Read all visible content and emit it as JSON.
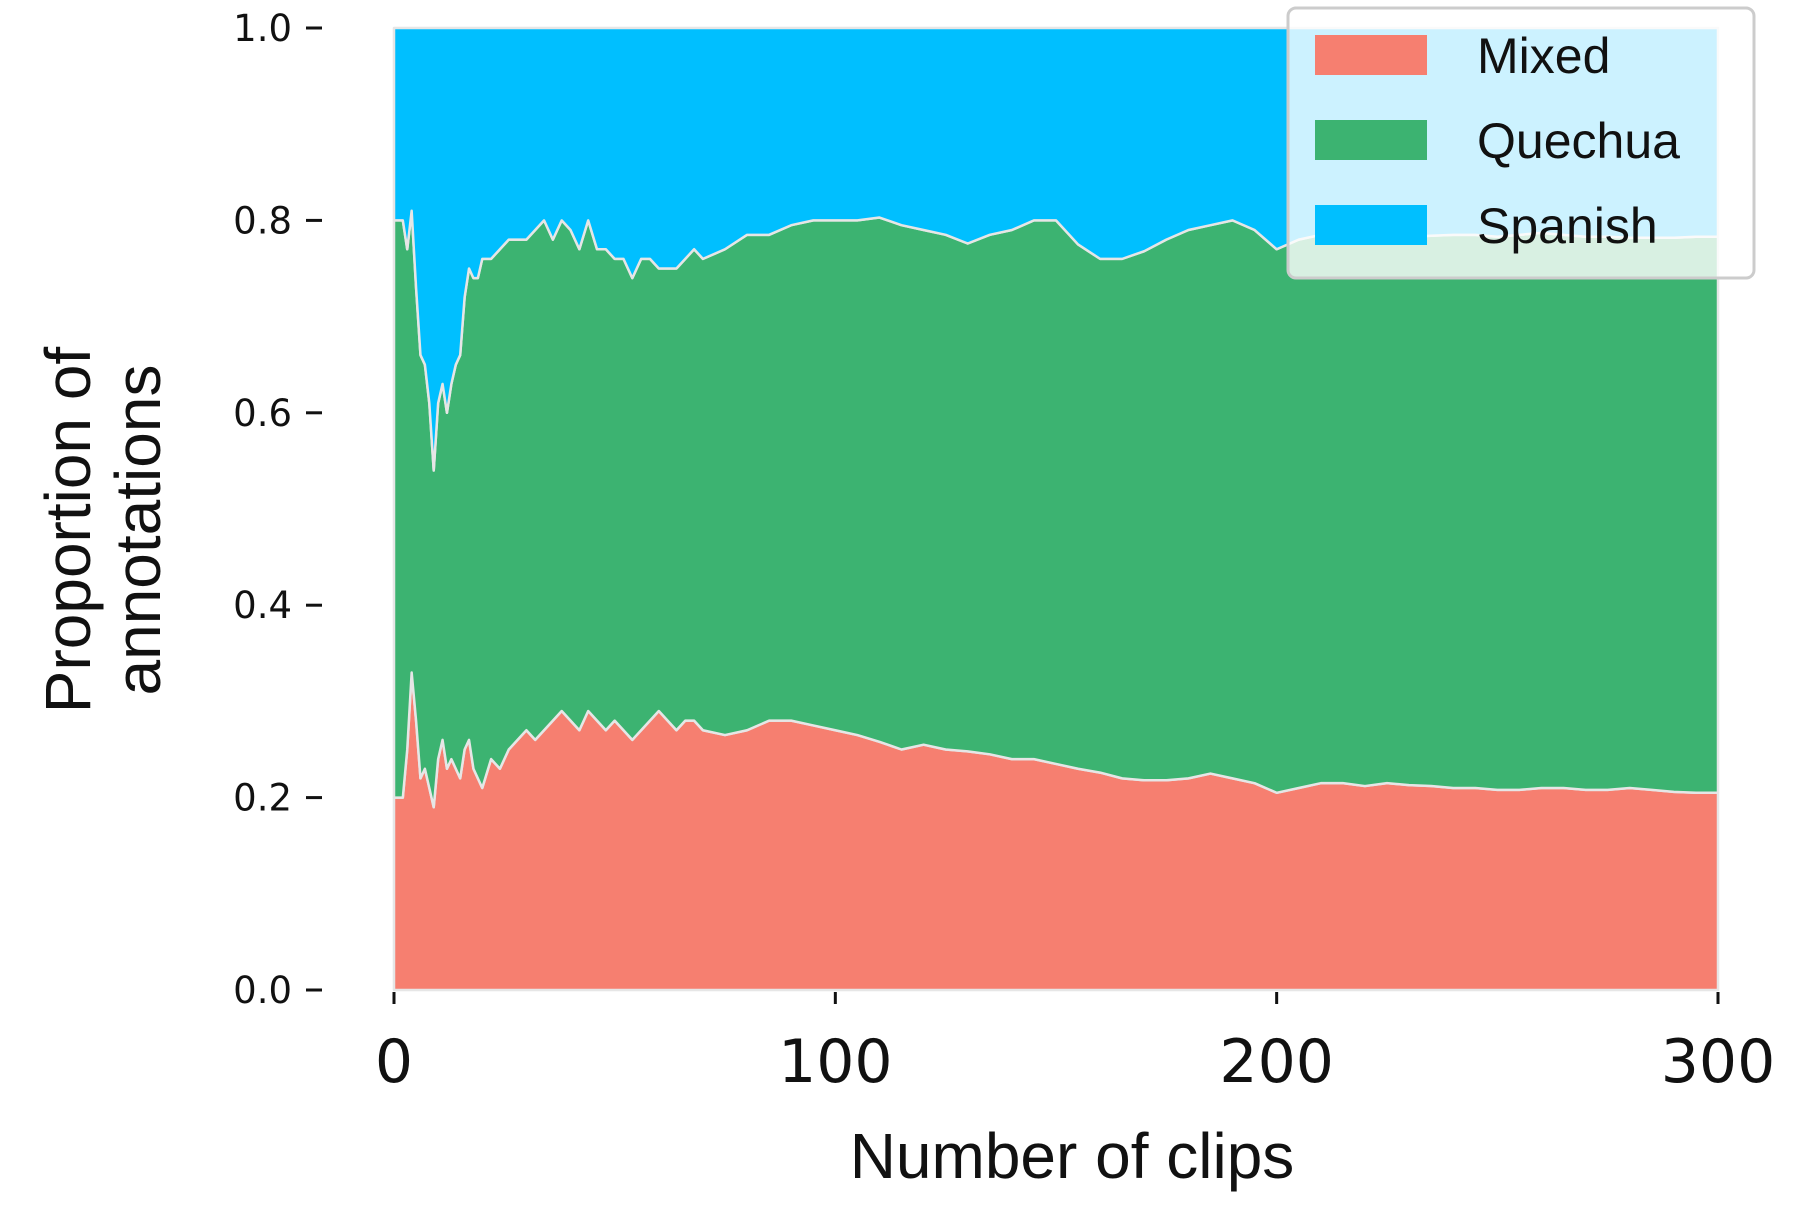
{
  "chart_data": {
    "type": "area",
    "stacked": true,
    "normalized": true,
    "xlabel": "Number of clips",
    "ylabel_lines": [
      "Proportion of",
      "annotations"
    ],
    "xlim": [
      0,
      300
    ],
    "ylim": [
      0,
      1
    ],
    "x_ticks": [
      "0",
      "100",
      "200",
      "300"
    ],
    "x_tick_values": [
      0,
      100,
      200,
      300
    ],
    "y_ticks": [
      "0.0",
      "0.2",
      "0.4",
      "0.6",
      "0.8",
      "1.0"
    ],
    "y_tick_values": [
      0,
      0.2,
      0.4,
      0.6,
      0.8,
      1.0
    ],
    "grid": false,
    "legend_position": "top-right",
    "x": [
      1,
      2,
      3,
      4,
      5,
      6,
      7,
      8,
      9,
      10,
      11,
      12,
      13,
      14,
      15,
      16,
      17,
      18,
      19,
      20,
      22,
      24,
      26,
      28,
      30,
      32,
      34,
      36,
      38,
      40,
      42,
      44,
      46,
      48,
      50,
      52,
      54,
      56,
      58,
      60,
      62,
      64,
      66,
      68,
      70,
      75,
      80,
      85,
      90,
      95,
      100,
      105,
      110,
      115,
      120,
      125,
      130,
      135,
      140,
      145,
      150,
      155,
      160,
      165,
      170,
      175,
      180,
      185,
      190,
      195,
      200,
      205,
      210,
      215,
      220,
      225,
      230,
      235,
      240,
      245,
      250,
      255,
      260,
      265,
      270,
      275,
      280,
      285,
      290,
      295,
      300
    ],
    "series": [
      {
        "name": "Mixed",
        "color": "#f67f70",
        "values": [
          0.2,
          0.2,
          0.25,
          0.33,
          0.28,
          0.22,
          0.23,
          0.21,
          0.19,
          0.24,
          0.26,
          0.23,
          0.24,
          0.23,
          0.22,
          0.25,
          0.26,
          0.23,
          0.22,
          0.21,
          0.24,
          0.23,
          0.25,
          0.26,
          0.27,
          0.26,
          0.27,
          0.28,
          0.29,
          0.28,
          0.27,
          0.29,
          0.28,
          0.27,
          0.28,
          0.27,
          0.26,
          0.27,
          0.28,
          0.29,
          0.28,
          0.27,
          0.28,
          0.28,
          0.27,
          0.265,
          0.27,
          0.28,
          0.28,
          0.275,
          0.27,
          0.265,
          0.258,
          0.25,
          0.255,
          0.25,
          0.248,
          0.245,
          0.24,
          0.24,
          0.235,
          0.23,
          0.226,
          0.22,
          0.218,
          0.218,
          0.22,
          0.225,
          0.22,
          0.215,
          0.205,
          0.21,
          0.215,
          0.215,
          0.212,
          0.215,
          0.213,
          0.212,
          0.21,
          0.21,
          0.208,
          0.208,
          0.21,
          0.21,
          0.208,
          0.208,
          0.21,
          0.208,
          0.206,
          0.205,
          0.205
        ]
      },
      {
        "name": "Quechua",
        "color": "#3cb371",
        "values": [
          0.6,
          0.6,
          0.52,
          0.48,
          0.45,
          0.44,
          0.42,
          0.4,
          0.35,
          0.37,
          0.37,
          0.37,
          0.39,
          0.42,
          0.44,
          0.47,
          0.49,
          0.51,
          0.52,
          0.55,
          0.52,
          0.54,
          0.53,
          0.52,
          0.51,
          0.53,
          0.53,
          0.5,
          0.51,
          0.51,
          0.5,
          0.51,
          0.49,
          0.5,
          0.48,
          0.49,
          0.48,
          0.49,
          0.48,
          0.46,
          0.47,
          0.48,
          0.48,
          0.49,
          0.49,
          0.505,
          0.515,
          0.505,
          0.515,
          0.525,
          0.53,
          0.535,
          0.545,
          0.545,
          0.535,
          0.535,
          0.528,
          0.54,
          0.55,
          0.56,
          0.565,
          0.545,
          0.534,
          0.54,
          0.55,
          0.562,
          0.57,
          0.57,
          0.58,
          0.575,
          0.565,
          0.57,
          0.57,
          0.57,
          0.57,
          0.57,
          0.57,
          0.572,
          0.575,
          0.575,
          0.575,
          0.577,
          0.577,
          0.575,
          0.575,
          0.575,
          0.572,
          0.574,
          0.576,
          0.578,
          0.578
        ]
      },
      {
        "name": "Spanish",
        "color": "#00bfff",
        "values": [
          0.2,
          0.2,
          0.23,
          0.19,
          0.27,
          0.34,
          0.35,
          0.39,
          0.46,
          0.39,
          0.37,
          0.4,
          0.37,
          0.35,
          0.34,
          0.28,
          0.25,
          0.26,
          0.26,
          0.24,
          0.24,
          0.23,
          0.22,
          0.22,
          0.22,
          0.21,
          0.2,
          0.22,
          0.2,
          0.21,
          0.23,
          0.2,
          0.23,
          0.23,
          0.24,
          0.24,
          0.26,
          0.24,
          0.24,
          0.25,
          0.25,
          0.25,
          0.24,
          0.23,
          0.24,
          0.23,
          0.215,
          0.215,
          0.205,
          0.2,
          0.2,
          0.2,
          0.197,
          0.205,
          0.21,
          0.215,
          0.224,
          0.215,
          0.21,
          0.2,
          0.2,
          0.225,
          0.24,
          0.24,
          0.232,
          0.22,
          0.21,
          0.205,
          0.2,
          0.21,
          0.23,
          0.22,
          0.215,
          0.215,
          0.218,
          0.215,
          0.217,
          0.216,
          0.215,
          0.215,
          0.217,
          0.215,
          0.213,
          0.215,
          0.217,
          0.217,
          0.218,
          0.218,
          0.218,
          0.217,
          0.217
        ]
      }
    ]
  }
}
